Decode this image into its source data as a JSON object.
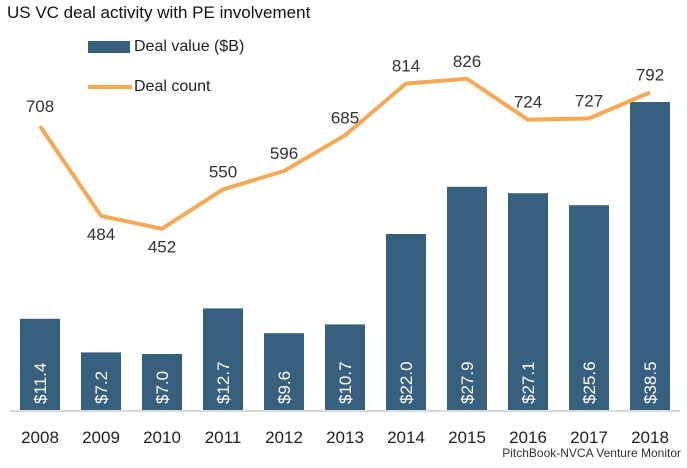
{
  "chart_data": {
    "type": "bar+line",
    "title": "US VC deal activity with PE involvement",
    "categories": [
      "2008",
      "2009",
      "2010",
      "2011",
      "2012",
      "2013",
      "2014",
      "2015",
      "2016",
      "2017",
      "2018"
    ],
    "series": [
      {
        "name": "Deal value ($B)",
        "type": "bar",
        "color": "#36607d",
        "values": [
          11.4,
          7.2,
          7.0,
          12.7,
          9.6,
          10.7,
          22.0,
          27.9,
          27.1,
          25.6,
          38.5
        ],
        "labels": [
          "$11.4",
          "$7.2",
          "$7.0",
          "$12.7",
          "$9.6",
          "$10.7",
          "$22.0",
          "$27.9",
          "$27.1",
          "$25.6",
          "$38.5"
        ]
      },
      {
        "name": "Deal count",
        "type": "line",
        "color": "#f5a955",
        "values": [
          708,
          484,
          452,
          550,
          596,
          685,
          814,
          826,
          724,
          727,
          792
        ],
        "labels": [
          "708",
          "484",
          "452",
          "550",
          "596",
          "685",
          "814",
          "826",
          "724",
          "727",
          "792"
        ]
      }
    ],
    "legend": "top-left",
    "grid": false,
    "source": "PitchBook-NVCA Venture Monitor"
  }
}
